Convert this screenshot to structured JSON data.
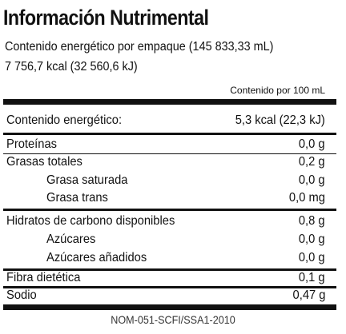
{
  "title": "Información Nutrimental",
  "energy_per_package": "Contenido energético por empaque (145 833,33 mL)",
  "energy_per_package_values": "7 756,7 kcal (32 560,6 kJ)",
  "column_header": "Contenido por 100 mL",
  "rows": [
    {
      "name": "Contenido energético:",
      "value": "5,3 kcal (22,3 kJ)"
    },
    {
      "name": "Proteínas",
      "value": "0,0 g"
    },
    {
      "name": "Grasas totales",
      "value": "0,2 g"
    },
    {
      "name": "Grasa saturada",
      "value": "0,0 g"
    },
    {
      "name": "Grasa trans",
      "value": "0,0 mg"
    },
    {
      "name": "Hidratos de carbono disponibles",
      "value": "0,8 g"
    },
    {
      "name": "Azúcares",
      "value": "0,0 g"
    },
    {
      "name": "Azúcares añadidos",
      "value": "0,0 g"
    },
    {
      "name": "Fibra dietética",
      "value": "0,1 g"
    },
    {
      "name": "Sodio",
      "value": "0,47 g"
    }
  ],
  "footer": "NOM-051-SCFI/SSA1-2010",
  "colors": {
    "text": "#111111",
    "rules": "#111111",
    "background": "#ffffff"
  }
}
